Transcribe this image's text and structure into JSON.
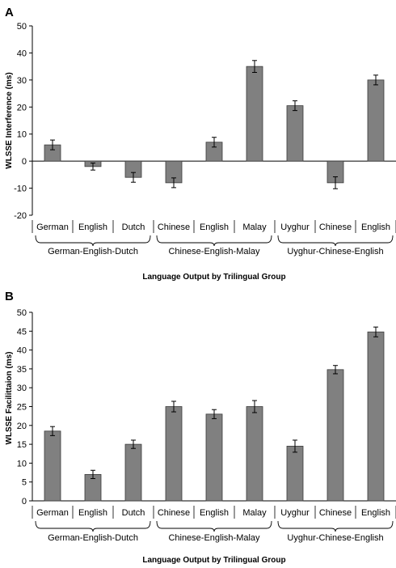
{
  "colors": {
    "bar": "#808080",
    "bar_stroke": "#3a3a3a",
    "axis": "#000000"
  },
  "chart_data": [
    {
      "type": "bar",
      "panel_label": "A",
      "title": "",
      "xlabel": "Language Output by  Trilingual Group",
      "ylabel": "WLSSE Interference (ms)",
      "ylim": [
        -20,
        50
      ],
      "yticks": [
        -20,
        -10,
        0,
        10,
        20,
        30,
        40,
        50
      ],
      "grid": false,
      "categories": [
        "German",
        "English",
        "Dutch",
        "Chinese",
        "English",
        "Malay",
        "Uyghur",
        "Chinese",
        "English"
      ],
      "values": [
        6,
        -2,
        -6,
        -8,
        7,
        35,
        20.5,
        -8,
        30
      ],
      "errors": [
        1.8,
        1.3,
        1.8,
        1.8,
        1.8,
        2.2,
        1.8,
        2.2,
        1.8
      ],
      "groups": [
        {
          "label": "German-English-Dutch",
          "start": 0,
          "end": 2
        },
        {
          "label": "Chinese-English-Malay",
          "start": 3,
          "end": 5
        },
        {
          "label": "Uyghur-Chinese-English",
          "start": 6,
          "end": 8
        }
      ]
    },
    {
      "type": "bar",
      "panel_label": "B",
      "title": "",
      "xlabel": "Language Output by  Trilingual Group",
      "ylabel": "WLSSE Facilittaion (ms)",
      "ylim": [
        0,
        50
      ],
      "yticks": [
        0,
        5,
        10,
        15,
        20,
        25,
        30,
        35,
        40,
        45,
        50
      ],
      "grid": false,
      "categories": [
        "German",
        "English",
        "Dutch",
        "Chinese",
        "English",
        "Malay",
        "Uyghur",
        "Chinese",
        "English"
      ],
      "values": [
        18.5,
        7,
        15,
        25,
        23,
        25,
        14.5,
        34.8,
        44.8
      ],
      "errors": [
        1.2,
        1.1,
        1.1,
        1.4,
        1.2,
        1.6,
        1.6,
        1.1,
        1.3
      ],
      "groups": [
        {
          "label": "German-English-Dutch",
          "start": 0,
          "end": 2
        },
        {
          "label": "Chinese-English-Malay",
          "start": 3,
          "end": 5
        },
        {
          "label": "Uyghur-Chinese-English",
          "start": 6,
          "end": 8
        }
      ]
    }
  ]
}
